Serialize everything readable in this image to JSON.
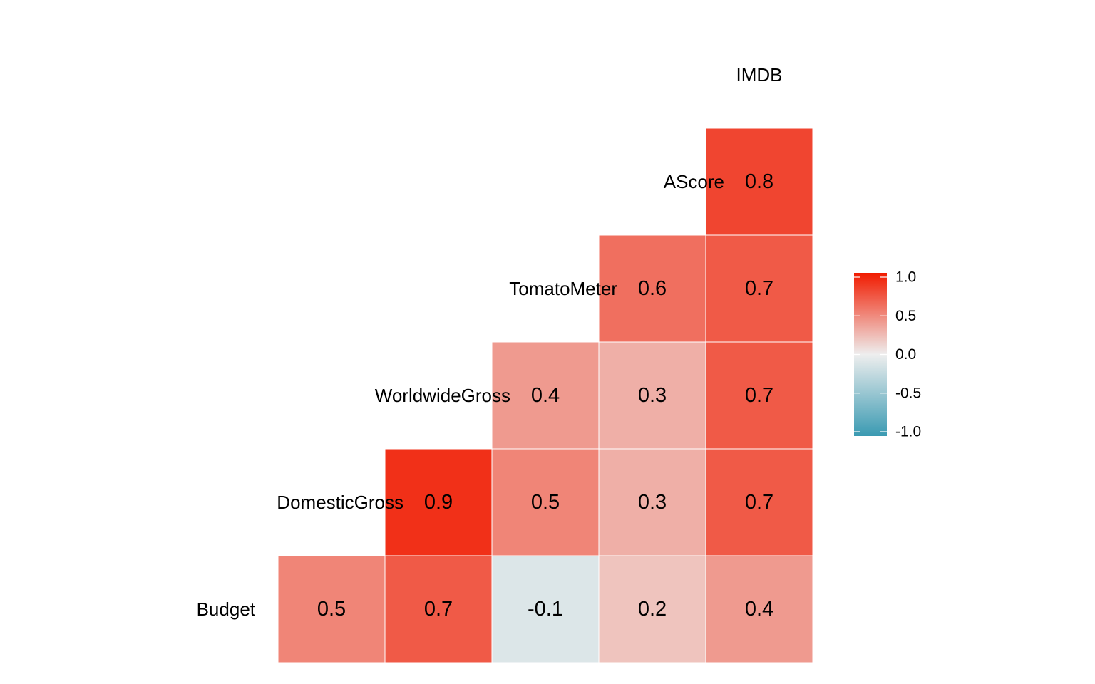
{
  "chart_data": {
    "type": "heatmap",
    "variables": [
      "Budget",
      "DomesticGross",
      "WorldwideGross",
      "TomatoMeter",
      "AScore",
      "IMDB"
    ],
    "cells": [
      {
        "row": "Budget",
        "col": "Budget",
        "value": 0.5,
        "label": "0.5"
      },
      {
        "row": "Budget",
        "col": "DomesticGross",
        "value": 0.7,
        "label": "0.7"
      },
      {
        "row": "Budget",
        "col": "WorldwideGross",
        "value": -0.1,
        "label": "-0.1"
      },
      {
        "row": "Budget",
        "col": "TomatoMeter",
        "value": 0.2,
        "label": "0.2"
      },
      {
        "row": "Budget",
        "col": "AScore",
        "value": 0.4,
        "label": "0.4"
      },
      {
        "row": "DomesticGross",
        "col": "DomesticGross",
        "value": 0.9,
        "label": "0.9"
      },
      {
        "row": "DomesticGross",
        "col": "WorldwideGross",
        "value": 0.5,
        "label": "0.5"
      },
      {
        "row": "DomesticGross",
        "col": "TomatoMeter",
        "value": 0.3,
        "label": "0.3"
      },
      {
        "row": "DomesticGross",
        "col": "AScore",
        "value": 0.7,
        "label": "0.7"
      },
      {
        "row": "WorldwideGross",
        "col": "WorldwideGross",
        "value": 0.4,
        "label": "0.4"
      },
      {
        "row": "WorldwideGross",
        "col": "TomatoMeter",
        "value": 0.3,
        "label": "0.3"
      },
      {
        "row": "WorldwideGross",
        "col": "AScore",
        "value": 0.7,
        "label": "0.7"
      },
      {
        "row": "TomatoMeter",
        "col": "TomatoMeter",
        "value": 0.6,
        "label": "0.6"
      },
      {
        "row": "TomatoMeter",
        "col": "AScore",
        "value": 0.7,
        "label": "0.7"
      },
      {
        "row": "AScore",
        "col": "AScore",
        "value": 0.8,
        "label": "0.8"
      }
    ],
    "colorscale": {
      "low": "#3A9AB2",
      "mid": "#EEEEEE",
      "high": "#F11B00",
      "range": [
        -1,
        1
      ]
    },
    "legend": {
      "position": "right",
      "ticks": [
        1.0,
        0.5,
        0.0,
        -0.5,
        -1.0
      ],
      "tick_labels": [
        "1.0",
        "0.5",
        "0.0",
        "-0.5",
        "-1.0"
      ]
    },
    "grid": false,
    "title": "",
    "xlabel": "",
    "ylabel": ""
  }
}
